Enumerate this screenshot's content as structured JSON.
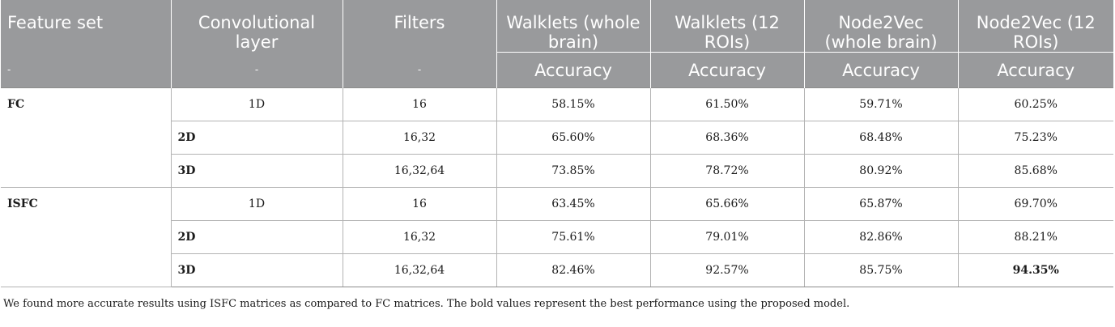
{
  "table": {
    "headers": [
      "Feature set",
      "Convolutional layer",
      "Filters",
      "Walklets (whole brain)",
      "Walklets (12 ROIs)",
      "Node2Vec (whole brain)",
      "Node2Vec (12 ROIs)"
    ],
    "subheaders": [
      "-",
      "-",
      "-",
      "Accuracy",
      "Accuracy",
      "Accuracy",
      "Accuracy"
    ],
    "groups": [
      {
        "feature_set": "FC",
        "rows": [
          {
            "layer": "1D",
            "filters": "16",
            "values": [
              "58.15%",
              "61.50%",
              "59.71%",
              "60.25%"
            ]
          },
          {
            "layer": "2D",
            "filters": "16,32",
            "values": [
              "65.60%",
              "68.36%",
              "68.48%",
              "75.23%"
            ]
          },
          {
            "layer": "3D",
            "filters": "16,32,64",
            "values": [
              "73.85%",
              "78.72%",
              "80.92%",
              "85.68%"
            ]
          }
        ]
      },
      {
        "feature_set": "ISFC",
        "rows": [
          {
            "layer": "1D",
            "filters": "16",
            "values": [
              "63.45%",
              "65.66%",
              "65.87%",
              "69.70%"
            ]
          },
          {
            "layer": "2D",
            "filters": "16,32",
            "values": [
              "75.61%",
              "79.01%",
              "82.86%",
              "88.21%"
            ]
          },
          {
            "layer": "3D",
            "filters": "16,32,64",
            "values": [
              "82.46%",
              "92.57%",
              "85.75%",
              "94.35%"
            ],
            "bold_index": 3
          }
        ]
      }
    ]
  },
  "footnote": "We found more accurate results using ISFC matrices as compared to FC matrices. The bold values represent the best performance using the proposed model."
}
